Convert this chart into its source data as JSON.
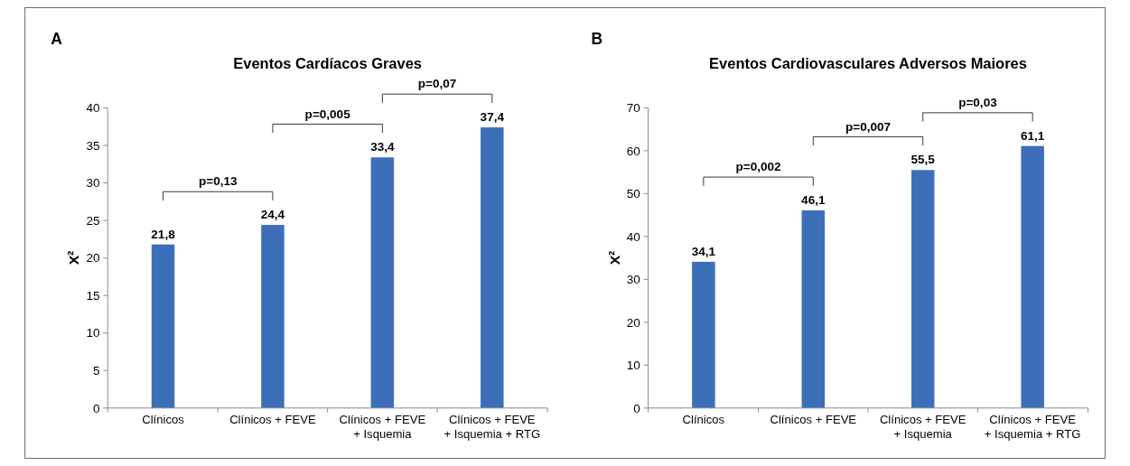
{
  "chart_data": [
    {
      "type": "bar",
      "title": "Eventos Cardíacos Graves",
      "ylabel": "X²",
      "categories": [
        "Clínicos",
        "Clínicos + FEVE",
        "Clínicos + FEVE + Isquemia",
        "Clínicos + FEVE + Isquemia + RTG"
      ],
      "values": [
        21.8,
        24.4,
        33.4,
        37.4
      ],
      "value_labels": [
        "21,8",
        "24,4",
        "33,4",
        "37,4"
      ],
      "color": "#3d6fb8",
      "ylim": [
        0,
        40
      ],
      "yticks": [
        0,
        5,
        10,
        15,
        20,
        25,
        30,
        35,
        40
      ],
      "grid": false,
      "annotations": [
        "A",
        "p=0,13",
        "p=0,005",
        "p=0,07"
      ]
    },
    {
      "type": "bar",
      "title": "Eventos Cardiovasculares Adversos Maiores",
      "ylabel": "X²",
      "categories": [
        "Clínicos",
        "Clínicos + FEVE",
        "Clínicos + FEVE + Isquemia",
        "Clínicos + FEVE + Isquemia + RTG"
      ],
      "values": [
        34.1,
        46.1,
        55.5,
        61.1
      ],
      "value_labels": [
        "34,1",
        "46,1",
        "55,5",
        "61,1"
      ],
      "color": "#3d6fb8",
      "ylim": [
        0,
        70
      ],
      "yticks": [
        0,
        10,
        20,
        30,
        40,
        50,
        60,
        70
      ],
      "grid": false,
      "annotations": [
        "B",
        "p=0,002",
        "p=0,007",
        "p=0,03"
      ]
    }
  ]
}
